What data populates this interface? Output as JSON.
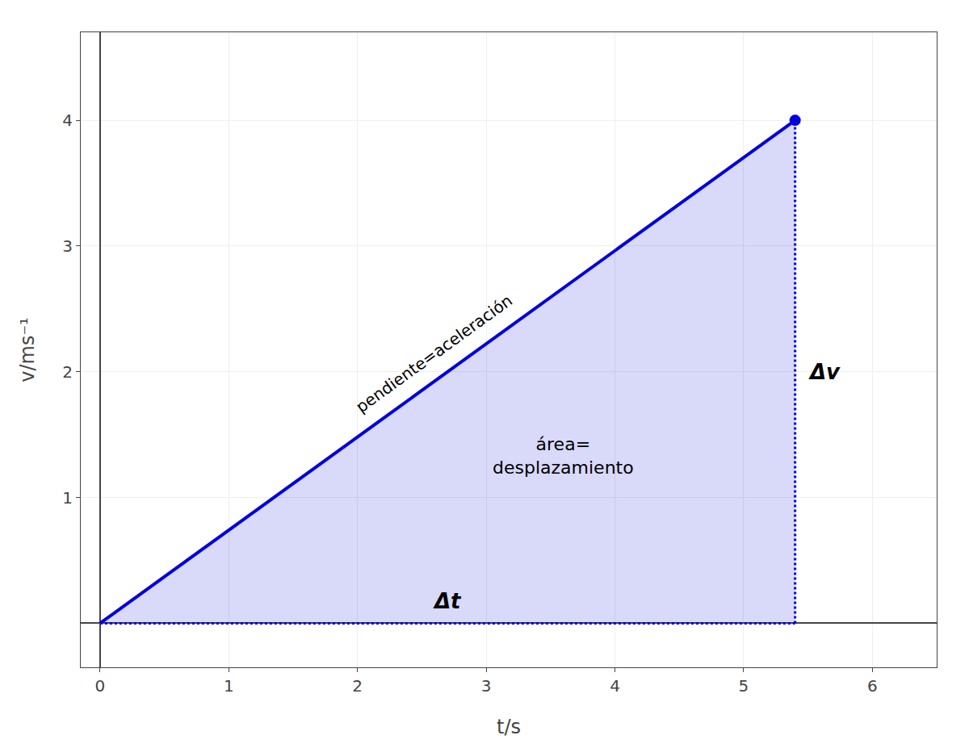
{
  "chart_data": {
    "type": "line",
    "x": [
      0.0,
      5.4
    ],
    "values": [
      0.0,
      4.0
    ],
    "color": "#0000dd",
    "xlabel": "t/s",
    "ylabel": "v/ms⁻¹",
    "xlim": [
      -0.15,
      6.5
    ],
    "ylim": [
      -0.35,
      4.7
    ],
    "xticks": [
      0,
      1,
      2,
      3,
      4,
      5,
      6
    ],
    "yticks": [
      1,
      2,
      3,
      4
    ],
    "grid": true,
    "annotations": [
      "área=\ndesplazamiento",
      "pendiente=aceleración",
      "Δt",
      "Δv"
    ]
  }
}
